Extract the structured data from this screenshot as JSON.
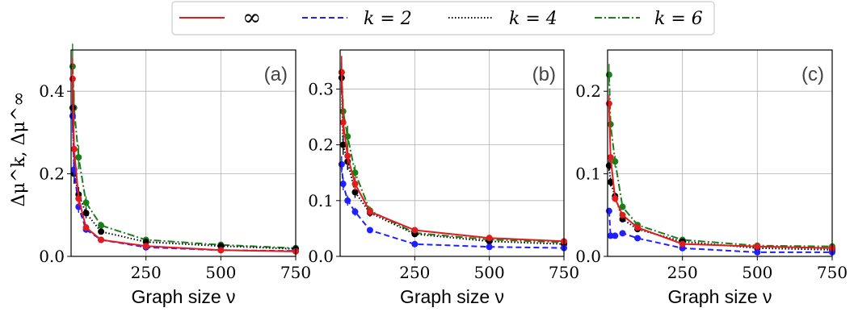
{
  "chart_data": {
    "type": "line",
    "legend": {
      "placement": "top-center",
      "entries": [
        {
          "label": "∞",
          "color": "#e41a1c",
          "dash": "solid"
        },
        {
          "label": "k = 2",
          "color": "#1f1fff",
          "dash": "dashed"
        },
        {
          "label": "k = 4",
          "color": "#000000",
          "dash": "dotted"
        },
        {
          "label": "k = 6",
          "color": "#1a7f1a",
          "dash": "dashdot"
        }
      ]
    },
    "shared_ylabel": "Δμ^k, Δμ^∞",
    "panels": [
      {
        "label": "(a)",
        "xlabel": "Graph size ν",
        "xlim": [
          0,
          750
        ],
        "ylim": [
          0,
          0.5
        ],
        "xticks": [
          250,
          500,
          750
        ],
        "xtick_labels": [
          "250",
          "500",
          "750"
        ],
        "yticks": [
          0,
          0.2,
          0.4
        ],
        "ytick_labels": [
          "0.0",
          "0.2",
          "0.4"
        ],
        "grid": true,
        "series": [
          {
            "x": [
              5,
              10,
              25,
              50,
              100,
              250,
              500,
              750
            ],
            "y": [
              0.43,
              0.26,
              0.14,
              0.07,
              0.04,
              0.025,
              0.015,
              0.012
            ]
          },
          {
            "x": [
              5,
              10,
              25,
              50,
              100,
              250,
              500,
              750
            ],
            "y": [
              0.34,
              0.21,
              0.12,
              0.065,
              0.04,
              0.022,
              0.015,
              0.013
            ]
          },
          {
            "x": [
              5,
              10,
              25,
              50,
              100,
              250,
              500,
              750
            ],
            "y": [
              0.36,
              0.2,
              0.15,
              0.105,
              0.06,
              0.035,
              0.025,
              0.018
            ]
          },
          {
            "x": [
              5,
              10,
              25,
              50,
              100,
              250,
              500,
              750
            ],
            "y": [
              0.46,
              0.36,
              0.24,
              0.13,
              0.075,
              0.04,
              0.028,
              0.02
            ]
          }
        ]
      },
      {
        "label": "(b)",
        "xlabel": "Graph size ν",
        "xlim": [
          0,
          750
        ],
        "ylim": [
          0,
          0.37
        ],
        "xticks": [
          250,
          500,
          750
        ],
        "xtick_labels": [
          "250",
          "500",
          "750"
        ],
        "yticks": [
          0,
          0.1,
          0.2,
          0.3
        ],
        "ytick_labels": [
          "0.0",
          "0.1",
          "0.2",
          "0.3"
        ],
        "grid": true,
        "series": [
          {
            "x": [
              5,
              10,
              25,
              50,
              100,
              250,
              500,
              750
            ],
            "y": [
              0.33,
              0.24,
              0.18,
              0.13,
              0.08,
              0.047,
              0.033,
              0.027
            ]
          },
          {
            "x": [
              5,
              10,
              25,
              50,
              100,
              250,
              500,
              750
            ],
            "y": [
              0.165,
              0.13,
              0.1,
              0.08,
              0.047,
              0.022,
              0.017,
              0.015
            ]
          },
          {
            "x": [
              5,
              10,
              25,
              50,
              100,
              250,
              500,
              750
            ],
            "y": [
              0.32,
              0.2,
              0.17,
              0.115,
              0.078,
              0.04,
              0.027,
              0.022
            ]
          },
          {
            "x": [
              5,
              10,
              25,
              50,
              100,
              250,
              500,
              750
            ],
            "y": [
              0.33,
              0.26,
              0.215,
              0.15,
              0.082,
              0.042,
              0.03,
              0.025
            ]
          }
        ]
      },
      {
        "label": "(c)",
        "xlabel": "Graph size ν",
        "xlim": [
          0,
          750
        ],
        "ylim": [
          0,
          0.25
        ],
        "xticks": [
          250,
          500,
          750
        ],
        "xtick_labels": [
          "250",
          "500",
          "750"
        ],
        "yticks": [
          0,
          0.1,
          0.2
        ],
        "ytick_labels": [
          "0.0",
          "0.1",
          "0.2"
        ],
        "grid": true,
        "series": [
          {
            "x": [
              5,
              10,
              25,
              50,
              100,
              250,
              500,
              750
            ],
            "y": [
              0.185,
              0.12,
              0.07,
              0.05,
              0.035,
              0.015,
              0.012,
              0.01
            ]
          },
          {
            "x": [
              5,
              10,
              25,
              50,
              100,
              250,
              500,
              750
            ],
            "y": [
              0.055,
              0.025,
              0.025,
              0.028,
              0.022,
              0.01,
              0.005,
              0.005
            ]
          },
          {
            "x": [
              5,
              10,
              25,
              50,
              100,
              250,
              500,
              750
            ],
            "y": [
              0.11,
              0.09,
              0.073,
              0.045,
              0.033,
              0.018,
              0.01,
              0.008
            ]
          },
          {
            "x": [
              5,
              10,
              25,
              50,
              100,
              250,
              500,
              750
            ],
            "y": [
              0.22,
              0.16,
              0.115,
              0.06,
              0.038,
              0.02,
              0.013,
              0.012
            ]
          }
        ]
      }
    ]
  }
}
